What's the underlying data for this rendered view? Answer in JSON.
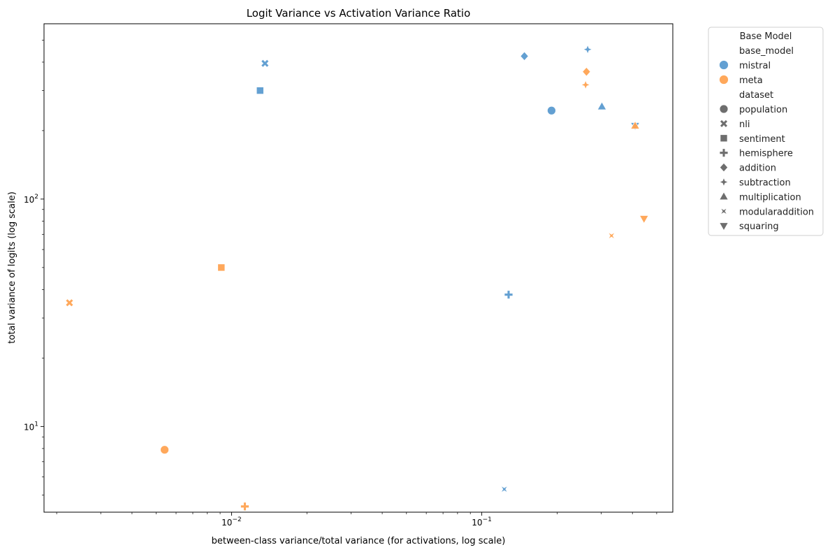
{
  "chart_data": {
    "type": "scatter",
    "title": "Logit Variance vs Activation Variance Ratio",
    "xlabel": "between-class variance/total variance (for activations, log scale)",
    "ylabel": "total variance of logits (log scale)",
    "xscale": "log",
    "yscale": "log",
    "xlim": [
      0.00178,
      0.58
    ],
    "ylim": [
      4.2,
      590
    ],
    "x_ticks": [
      {
        "value": 0.01,
        "base": "10",
        "exp": "−2"
      },
      {
        "value": 0.1,
        "base": "10",
        "exp": "−1"
      }
    ],
    "y_ticks": [
      {
        "value": 10,
        "base": "10",
        "exp": "1"
      },
      {
        "value": 100,
        "base": "10",
        "exp": "2"
      }
    ],
    "grid": false,
    "legend": {
      "title": "Base Model",
      "placement": "outside-right",
      "hue_header": "base_model",
      "hue_entries": [
        {
          "name": "mistral",
          "color": "#5b9bd0"
        },
        {
          "name": "meta",
          "color": "#ffa352"
        }
      ],
      "style_header": "dataset",
      "style_entries": [
        {
          "name": "population",
          "marker": "circle"
        },
        {
          "name": "nli",
          "marker": "x"
        },
        {
          "name": "sentiment",
          "marker": "square"
        },
        {
          "name": "hemisphere",
          "marker": "plus"
        },
        {
          "name": "addition",
          "marker": "diamond"
        },
        {
          "name": "subtraction",
          "marker": "star4"
        },
        {
          "name": "multiplication",
          "marker": "triangle-up"
        },
        {
          "name": "modularaddition",
          "marker": "bowtie"
        },
        {
          "name": "squaring",
          "marker": "triangle-down"
        }
      ],
      "neutral_color": "#6e6e6e"
    },
    "points": [
      {
        "base_model": "mistral",
        "dataset": "population",
        "x": 0.19,
        "y": 245
      },
      {
        "base_model": "mistral",
        "dataset": "nli",
        "x": 0.0136,
        "y": 395
      },
      {
        "base_model": "mistral",
        "dataset": "sentiment",
        "x": 0.013,
        "y": 300
      },
      {
        "base_model": "mistral",
        "dataset": "hemisphere",
        "x": 0.128,
        "y": 38
      },
      {
        "base_model": "mistral",
        "dataset": "addition",
        "x": 0.148,
        "y": 425
      },
      {
        "base_model": "mistral",
        "dataset": "subtraction",
        "x": 0.265,
        "y": 455
      },
      {
        "base_model": "mistral",
        "dataset": "multiplication",
        "x": 0.302,
        "y": 255
      },
      {
        "base_model": "mistral",
        "dataset": "modularaddition",
        "x": 0.123,
        "y": 5.3
      },
      {
        "base_model": "mistral",
        "dataset": "squaring",
        "x": 0.41,
        "y": 210
      },
      {
        "base_model": "meta",
        "dataset": "population",
        "x": 0.0054,
        "y": 7.9
      },
      {
        "base_model": "meta",
        "dataset": "nli",
        "x": 0.00225,
        "y": 35
      },
      {
        "base_model": "meta",
        "dataset": "sentiment",
        "x": 0.0091,
        "y": 50
      },
      {
        "base_model": "meta",
        "dataset": "hemisphere",
        "x": 0.0113,
        "y": 4.45
      },
      {
        "base_model": "meta",
        "dataset": "addition",
        "x": 0.262,
        "y": 363
      },
      {
        "base_model": "meta",
        "dataset": "subtraction",
        "x": 0.26,
        "y": 318
      },
      {
        "base_model": "meta",
        "dataset": "multiplication",
        "x": 0.41,
        "y": 210
      },
      {
        "base_model": "meta",
        "dataset": "modularaddition",
        "x": 0.33,
        "y": 69
      },
      {
        "base_model": "meta",
        "dataset": "squaring",
        "x": 0.445,
        "y": 82
      }
    ]
  }
}
